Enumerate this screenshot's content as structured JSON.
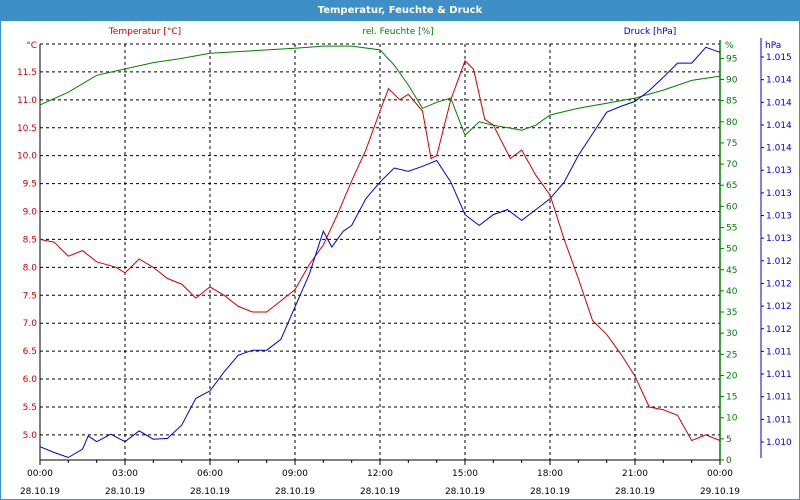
{
  "title": "Temperatur, Feuchte & Druck",
  "colors": {
    "temperature": "#d00000",
    "humidity": "#008000",
    "pressure": "#0000d0",
    "title_bg": "#3d8fc6"
  },
  "chart_data": {
    "type": "line",
    "title": "Temperatur, Feuchte & Druck",
    "grid": true,
    "x_unit": "hours since 28.10.19 00:00",
    "xlim": [
      0,
      24
    ],
    "x_ticks": [
      {
        "time": "00:00",
        "date": "28.10.19",
        "h": 0
      },
      {
        "time": "03:00",
        "date": "28.10.19",
        "h": 3
      },
      {
        "time": "06:00",
        "date": "28.10.19",
        "h": 6
      },
      {
        "time": "09:00",
        "date": "28.10.19",
        "h": 9
      },
      {
        "time": "12:00",
        "date": "28.10.19",
        "h": 12
      },
      {
        "time": "15:00",
        "date": "28.10.19",
        "h": 15
      },
      {
        "time": "18:00",
        "date": "28.10.19",
        "h": 18
      },
      {
        "time": "21:00",
        "date": "28.10.19",
        "h": 21
      },
      {
        "time": "00:00",
        "date": "29.10.19",
        "h": 24
      }
    ],
    "axes": {
      "temperature": {
        "label": "Temperatur [°C]",
        "unit": "°C",
        "ylim": [
          4.55,
          12.0
        ],
        "ticks": [
          "11.5",
          "11.0",
          "10.5",
          "10.0",
          "9.5",
          "9.0",
          "8.5",
          "8.0",
          "7.5",
          "7.0",
          "6.5",
          "6.0",
          "5.5",
          "5.0"
        ]
      },
      "humidity": {
        "label": "rel. Feuchte [%]",
        "unit": "%",
        "ylim": [
          0,
          98.4
        ],
        "ticks": [
          "95",
          "90",
          "85",
          "80",
          "75",
          "70",
          "65",
          "60",
          "55",
          "50",
          "45",
          "40",
          "35",
          "30",
          "25",
          "20",
          "15",
          "10",
          "5",
          "0"
        ]
      },
      "pressure": {
        "label": "Druck [hPa]",
        "unit": "hPa",
        "ylim": [
          1.01,
          1.015
        ],
        "ticks": [
          "1.015",
          "1.014",
          "1.014",
          "1.014",
          "1.014",
          "1.013",
          "1.013",
          "1.013",
          "1.013",
          "1.012",
          "1.012",
          "1.012",
          "1.012",
          "1.011",
          "1.011",
          "1.011",
          "1.011",
          "1.010"
        ]
      }
    },
    "series": [
      {
        "name": "Temperatur [°C]",
        "axis": "temperature",
        "color": "#d00000",
        "x": [
          0,
          0.5,
          1,
          1.5,
          2,
          2.7,
          3,
          3.5,
          4,
          4.5,
          5,
          5.5,
          6,
          6.5,
          7,
          7.5,
          8,
          8.5,
          9,
          9.5,
          10,
          10.5,
          11,
          11.5,
          12,
          12.3,
          12.7,
          13,
          13.5,
          13.8,
          14,
          14.5,
          15,
          15.3,
          15.7,
          16,
          16.6,
          17,
          17.5,
          18,
          18.5,
          19,
          19.5,
          20,
          20.5,
          21,
          21.5,
          22,
          22.5,
          23,
          23.5,
          24
        ],
        "y": [
          8.5,
          8.45,
          8.2,
          8.3,
          8.1,
          8.0,
          7.9,
          8.15,
          8.0,
          7.8,
          7.7,
          7.45,
          7.65,
          7.5,
          7.3,
          7.2,
          7.2,
          7.4,
          7.6,
          8.05,
          8.4,
          8.95,
          9.55,
          10.1,
          10.8,
          11.2,
          11.0,
          11.1,
          10.8,
          9.95,
          10.0,
          11.0,
          11.7,
          11.55,
          10.65,
          10.55,
          9.95,
          10.1,
          9.65,
          9.3,
          8.5,
          7.8,
          7.05,
          6.8,
          6.45,
          6.05,
          5.5,
          5.45,
          5.35,
          4.9,
          5.0,
          4.9
        ]
      },
      {
        "name": "rel. Feuchte [%]",
        "axis": "humidity",
        "color": "#008000",
        "x": [
          0,
          1,
          2,
          3,
          4,
          5,
          6,
          8,
          9,
          10,
          11,
          12,
          12.5,
          13,
          13.5,
          14,
          14.5,
          15,
          15.5,
          16,
          17,
          17.5,
          18,
          19,
          20,
          21,
          22,
          23,
          24
        ],
        "y": [
          84,
          87,
          91,
          92.5,
          94,
          95,
          96.2,
          97,
          97.4,
          97.9,
          97.9,
          97,
          93.4,
          88.7,
          83.2,
          84.6,
          85.6,
          76.8,
          80,
          79.2,
          78,
          79.2,
          81.6,
          83.2,
          84.4,
          85.6,
          87.5,
          89.8,
          90.8
        ]
      },
      {
        "name": "Druck [hPa]",
        "axis": "pressure",
        "color": "#0000d0",
        "x": [
          0,
          0.5,
          1,
          1.5,
          1.7,
          2,
          2.5,
          3,
          3.5,
          4,
          4.5,
          5,
          5.5,
          6,
          6.5,
          7,
          7.5,
          8,
          8.5,
          9,
          9.5,
          10,
          10.3,
          10.7,
          11,
          11.5,
          12,
          12.5,
          13,
          13.5,
          14,
          14.5,
          15,
          15.5,
          16,
          16.5,
          17,
          17.5,
          18,
          18.5,
          19,
          19.5,
          20,
          20.5,
          21,
          21.5,
          22,
          22.5,
          23,
          23.5,
          24
        ],
        "y": [
          1.01016,
          1.01009,
          1.01003,
          1.01013,
          1.01029,
          1.01022,
          1.01031,
          1.01022,
          1.01035,
          1.01025,
          1.01026,
          1.01042,
          1.01074,
          1.01083,
          1.01106,
          1.01126,
          1.01132,
          1.01132,
          1.01145,
          1.01184,
          1.01223,
          1.01275,
          1.01256,
          1.01275,
          1.01282,
          1.01314,
          1.01334,
          1.01351,
          1.01347,
          1.01353,
          1.0136,
          1.01334,
          1.01295,
          1.01282,
          1.01295,
          1.01301,
          1.01288,
          1.01301,
          1.01314,
          1.01334,
          1.01366,
          1.01392,
          1.01418,
          1.01425,
          1.01431,
          1.01444,
          1.0146,
          1.01477,
          1.01477,
          1.01496,
          1.0149
        ]
      }
    ]
  }
}
